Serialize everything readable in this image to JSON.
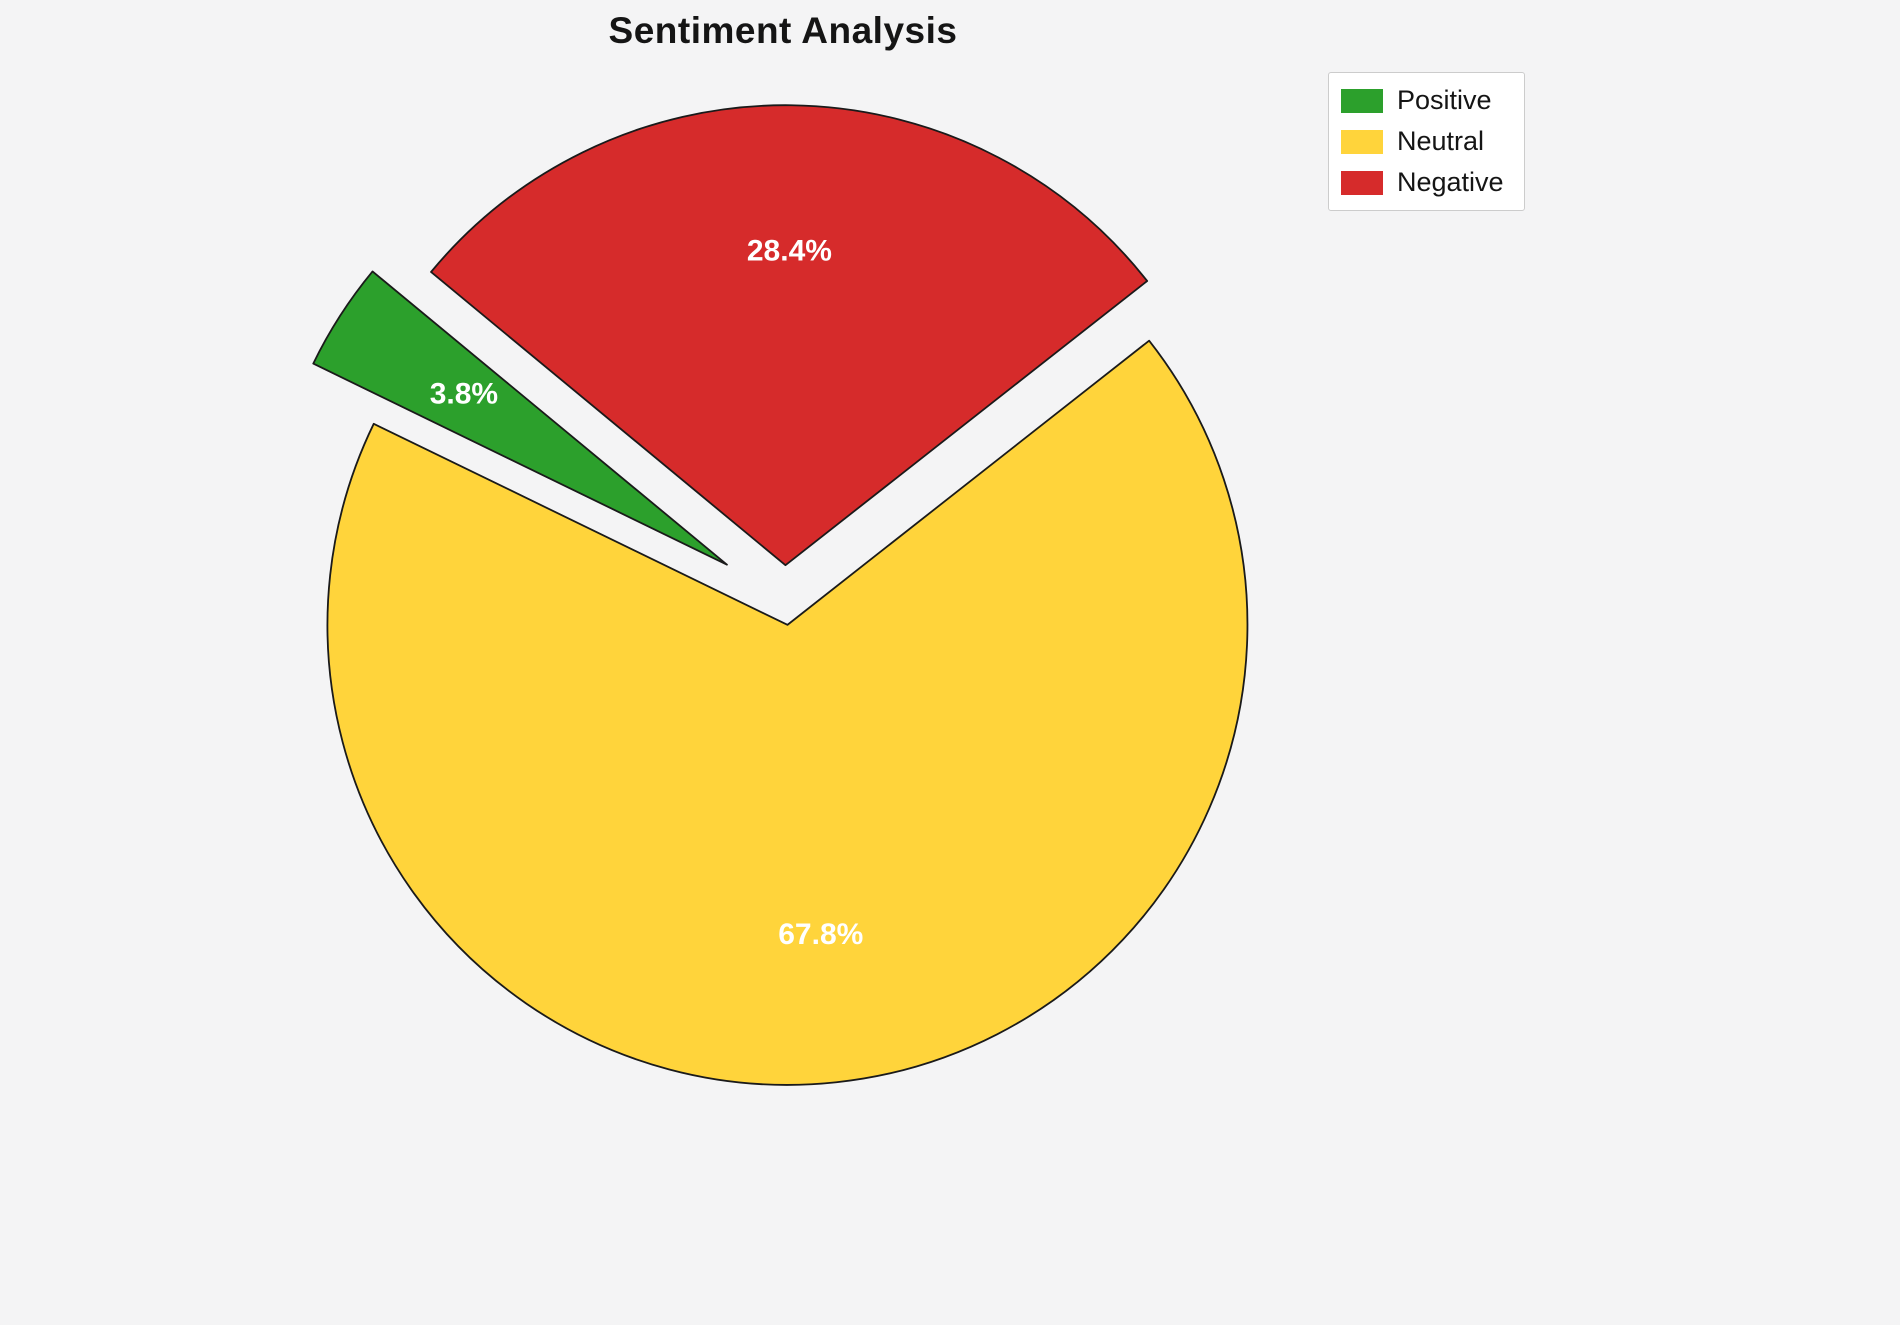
{
  "chart_data": {
    "type": "pie",
    "title": "Sentiment Analysis",
    "labels": [
      "Positive",
      "Neutral",
      "Negative"
    ],
    "values": [
      3.8,
      67.8,
      28.4
    ],
    "autopct_labels": [
      "3.8%",
      "67.8%",
      "28.4%"
    ],
    "colors": [
      "#2CA02C",
      "#FFD43B",
      "#D62B2B"
    ],
    "explode": [
      0.15,
      0.05,
      0.08
    ],
    "start_angle": 140.4,
    "counterclock": true,
    "edge_color": "#1a1a1a",
    "label_color": "#ffffff",
    "label_distance": 0.68,
    "legend_position": "upper right",
    "background": "#f4f4f5"
  }
}
